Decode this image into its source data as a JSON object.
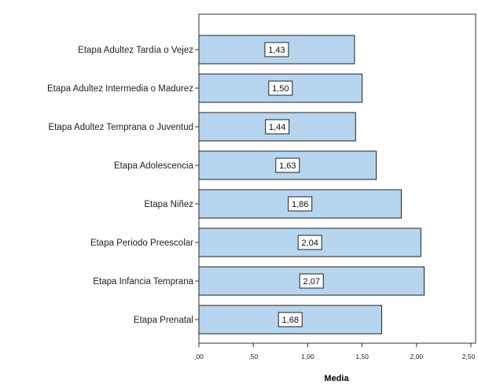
{
  "chart_data": {
    "type": "bar",
    "orientation": "horizontal",
    "categories": [
      "Etapa Adultez Tardía o Vejez",
      "Etapa Adultez Intermedia o Madurez",
      "Etapa Adultez Temprana o Juventud",
      "Etapa Adolescencia",
      "Etapa Niñez",
      "Etapa Periodo Preescolar",
      "Etapa Infancia Temprana",
      "Etapa Prenatal"
    ],
    "values": [
      1.43,
      1.5,
      1.44,
      1.63,
      1.86,
      2.04,
      2.07,
      1.68
    ],
    "data_labels": [
      "1,43",
      "1,50",
      "1,44",
      "1,63",
      "1,86",
      "2,04",
      "2,07",
      "1,68"
    ],
    "xlabel": "Media",
    "ylabel": "",
    "title": "",
    "xlim": [
      0,
      2.5
    ],
    "x_ticks": [
      0,
      0.5,
      1.0,
      1.5,
      2.0,
      2.5
    ],
    "x_tick_labels": [
      ",00",
      ",50",
      "1,00",
      "1,50",
      "2,00",
      "2,50"
    ],
    "bar_color": "#b7d5ef",
    "bar_edge_color": "#222222",
    "grid": false,
    "legend": "none"
  }
}
